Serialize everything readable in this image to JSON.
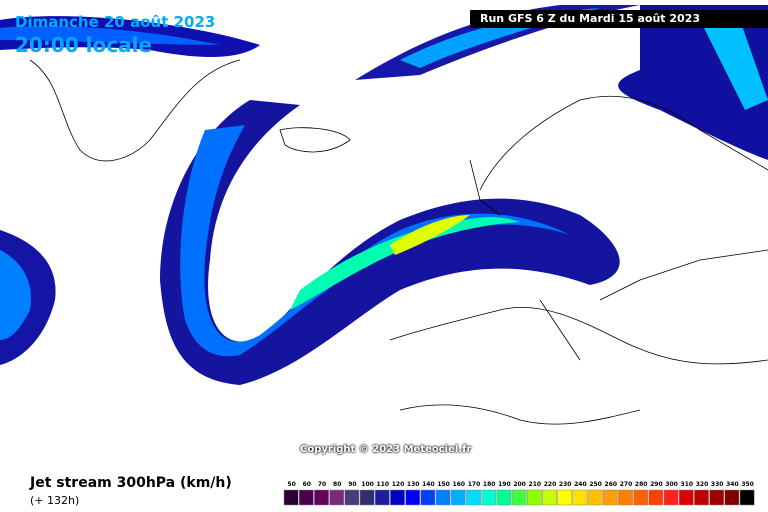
{
  "header": {
    "date": "Dimanche 20 août 2023",
    "time": "20:00 locale",
    "run": "Run GFS 6 Z du Mardi 15 août 2023"
  },
  "copyright": "Copyright © 2023 Meteociel.fr",
  "footer": {
    "title": "Jet stream 300hPa (km/h)",
    "lead": "(+ 132h)"
  },
  "legend": {
    "labels": [
      50,
      60,
      70,
      80,
      90,
      100,
      110,
      120,
      130,
      140,
      150,
      160,
      170,
      180,
      190,
      200,
      210,
      220,
      230,
      240,
      250,
      260,
      270,
      280,
      290,
      300,
      310,
      320,
      330,
      340,
      350
    ],
    "colors": [
      "#2a0030",
      "#4a0050",
      "#66005e",
      "#7a2a7a",
      "#4a3d7e",
      "#30306e",
      "#1c1ca0",
      "#0000c8",
      "#0000ff",
      "#0040ff",
      "#0080ff",
      "#00b0ff",
      "#00dcff",
      "#00ffd0",
      "#00ff90",
      "#40ff40",
      "#90ff00",
      "#c8ff00",
      "#ffff00",
      "#ffe000",
      "#ffc000",
      "#ffa000",
      "#ff8000",
      "#ff6000",
      "#ff4000",
      "#ff2020",
      "#e00000",
      "#c00000",
      "#a00000",
      "#800000",
      "#000000"
    ]
  }
}
